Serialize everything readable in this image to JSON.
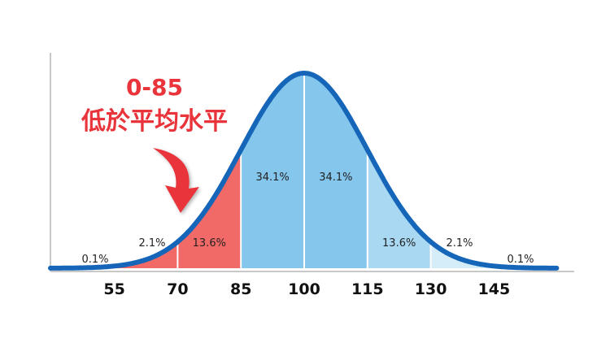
{
  "chart_data": {
    "type": "area",
    "title": "",
    "xlabel": "",
    "ylabel": "",
    "mean": 100,
    "sd": 15,
    "x_ticks": [
      "55",
      "70",
      "85",
      "100",
      "115",
      "130",
      "145"
    ],
    "x_tick_values": [
      55,
      70,
      85,
      100,
      115,
      130,
      145
    ],
    "segments": [
      {
        "from": 40,
        "to": 55,
        "label": "0.1%",
        "color": "#f8b8b6"
      },
      {
        "from": 55,
        "to": 70,
        "label": "2.1%",
        "color": "#f26a67"
      },
      {
        "from": 70,
        "to": 85,
        "label": "13.6%",
        "color": "#f26a67"
      },
      {
        "from": 85,
        "to": 100,
        "label": "34.1%",
        "color": "#84c6ec"
      },
      {
        "from": 100,
        "to": 115,
        "label": "34.1%",
        "color": "#84c6ec"
      },
      {
        "from": 115,
        "to": 130,
        "label": "13.6%",
        "color": "#a9d8f3"
      },
      {
        "from": 130,
        "to": 145,
        "label": "2.1%",
        "color": "#d5ecf9"
      },
      {
        "from": 145,
        "to": 160,
        "label": "0.1%",
        "color": "#d5ecf9"
      }
    ],
    "grid": false,
    "curve_color": "#1565b8"
  },
  "annotation": {
    "range": "0-85",
    "text": "低於平均水平",
    "arrow_color": "#e8343a"
  }
}
